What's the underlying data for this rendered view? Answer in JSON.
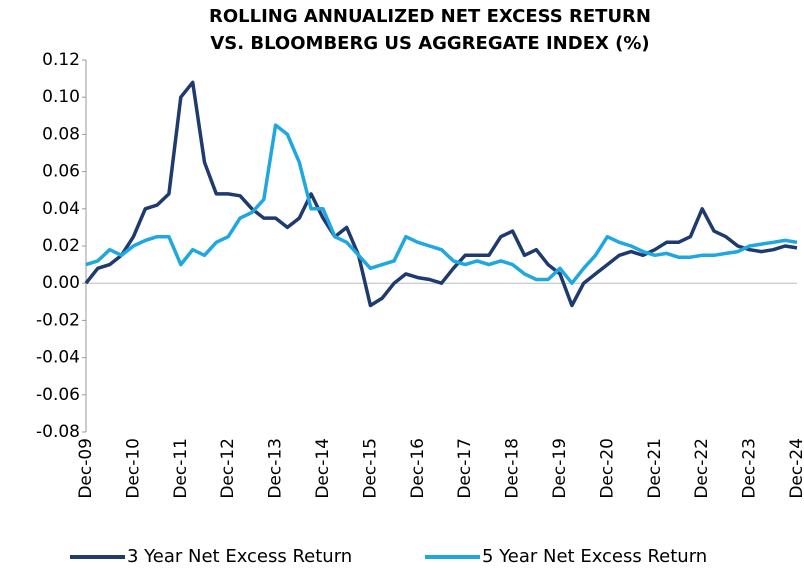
{
  "chart_data": {
    "type": "line",
    "title": [
      "ROLLING ANNUALIZED NET EXCESS RETURN",
      "VS. BLOOMBERG US AGGREGATE INDEX (%)"
    ],
    "categories": [
      "Dec-09",
      null,
      null,
      null,
      "Dec-10",
      null,
      null,
      null,
      "Dec-11",
      null,
      null,
      null,
      "Dec-12",
      null,
      null,
      null,
      "Dec-13",
      null,
      null,
      null,
      "Dec-14",
      null,
      null,
      null,
      "Dec-15",
      null,
      null,
      null,
      "Dec-16",
      null,
      null,
      null,
      "Dec-17",
      null,
      null,
      null,
      "Dec-18",
      null,
      null,
      null,
      "Dec-19",
      null,
      null,
      null,
      "Dec-20",
      null,
      null,
      null,
      "Dec-21",
      null,
      null,
      null,
      "Dec-22",
      null,
      null,
      null,
      "Dec-23",
      null,
      null,
      null,
      "Dec-24"
    ],
    "series": [
      {
        "name": "3 Year Net Excess Return",
        "color": "#1f3a6e",
        "values": [
          0.0,
          0.008,
          0.01,
          0.015,
          0.025,
          0.04,
          0.042,
          0.048,
          0.1,
          0.108,
          0.065,
          0.048,
          0.048,
          0.047,
          0.04,
          0.035,
          0.035,
          0.03,
          0.035,
          0.048,
          0.035,
          0.025,
          0.03,
          0.015,
          -0.012,
          -0.008,
          0.0,
          0.005,
          0.003,
          0.002,
          0.0,
          0.008,
          0.015,
          0.015,
          0.015,
          0.025,
          0.028,
          0.015,
          0.018,
          0.01,
          0.005,
          -0.012,
          0.0,
          0.005,
          0.01,
          0.015,
          0.017,
          0.015,
          0.018,
          0.022,
          0.022,
          0.025,
          0.04,
          0.028,
          0.025,
          0.02,
          0.018,
          0.017,
          0.018,
          0.02,
          0.019
        ]
      },
      {
        "name": "5 Year Net Excess Return",
        "color": "#1ea7e1",
        "values": [
          0.01,
          0.012,
          0.018,
          0.015,
          0.02,
          0.023,
          0.025,
          0.025,
          0.01,
          0.018,
          0.015,
          0.022,
          0.025,
          0.035,
          0.038,
          0.045,
          0.085,
          0.08,
          0.065,
          0.04,
          0.04,
          0.025,
          0.022,
          0.015,
          0.008,
          0.01,
          0.012,
          0.025,
          0.022,
          0.02,
          0.018,
          0.012,
          0.01,
          0.012,
          0.01,
          0.012,
          0.01,
          0.005,
          0.002,
          0.002,
          0.008,
          0.0,
          0.008,
          0.015,
          0.025,
          0.022,
          0.02,
          0.017,
          0.015,
          0.016,
          0.014,
          0.014,
          0.015,
          0.015,
          0.016,
          0.017,
          0.02,
          0.021,
          0.022,
          0.023,
          0.022
        ]
      }
    ],
    "ylim": [
      -0.08,
      0.12
    ],
    "yticks": [
      0.12,
      {
        "value": 0.1,
        "label": "0.10"
      },
      0.08,
      0.06,
      0.04,
      0.02,
      {
        "value": 0,
        "label": "0.00"
      },
      -0.02,
      -0.04,
      -0.06,
      -0.08
    ]
  }
}
